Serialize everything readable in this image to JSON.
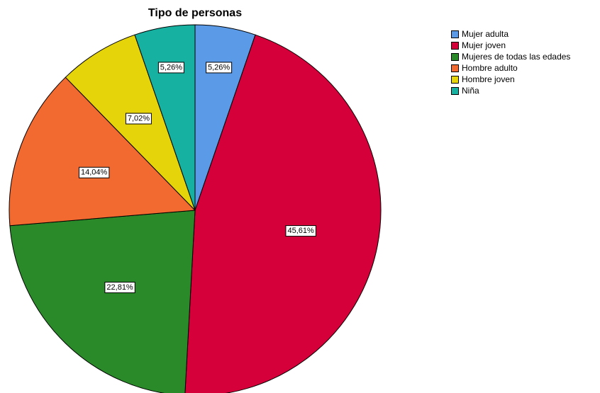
{
  "chart_data": {
    "type": "pie",
    "title": "Tipo de personas",
    "legend_position": "right",
    "slices": [
      {
        "name": "Mujer adulta",
        "value": 5.26,
        "label": "5,26%",
        "color": "#5a9ae6"
      },
      {
        "name": "Mujer joven",
        "value": 45.61,
        "label": "45,61%",
        "color": "#d5003a"
      },
      {
        "name": "Mujeres de todas las edades",
        "value": 22.81,
        "label": "22,81%",
        "color": "#2a8a2a"
      },
      {
        "name": "Hombre adulto",
        "value": 14.04,
        "label": "14,04%",
        "color": "#f26a30"
      },
      {
        "name": "Hombre joven",
        "value": 7.02,
        "label": "7,02%",
        "color": "#e6d40a"
      },
      {
        "name": "Niña",
        "value": 5.26,
        "label": "5,26%",
        "color": "#16b1a0"
      }
    ]
  }
}
